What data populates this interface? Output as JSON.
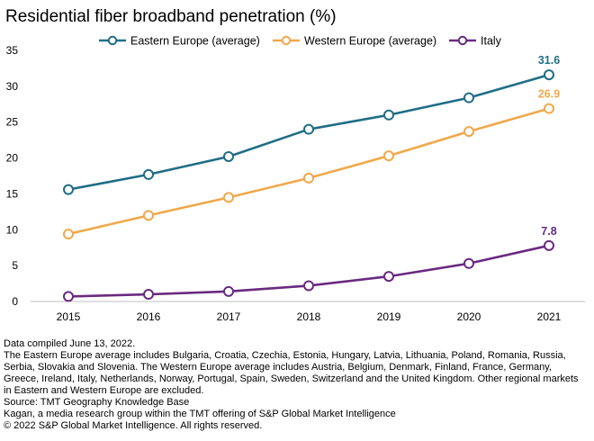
{
  "chart_data": {
    "type": "line",
    "title": "Residential fiber broadband penetration (%)",
    "xlabel": "",
    "ylabel": "",
    "categories": [
      "2015",
      "2016",
      "2017",
      "2018",
      "2019",
      "2020",
      "2021"
    ],
    "ylim": [
      0,
      35
    ],
    "yticks": [
      0,
      5,
      10,
      15,
      20,
      25,
      30,
      35
    ],
    "grid": false,
    "legend_position": "top",
    "series": [
      {
        "name": "Eastern Europe (average)",
        "color": "#1f6e86",
        "values": [
          15.6,
          17.7,
          20.2,
          24.0,
          26.0,
          28.4,
          31.6
        ],
        "end_label": "31.6"
      },
      {
        "name": "Western Europe (average)",
        "color": "#f0a84a",
        "values": [
          9.4,
          12.0,
          14.5,
          17.2,
          20.3,
          23.7,
          26.9
        ],
        "end_label": "26.9"
      },
      {
        "name": "Italy",
        "color": "#6a2a80",
        "values": [
          0.7,
          1.0,
          1.4,
          2.2,
          3.5,
          5.3,
          7.8
        ],
        "end_label": "7.8"
      }
    ]
  },
  "notes": [
    "Data compiled June 13, 2022.",
    "The Eastern Europe average includes Bulgaria, Croatia, Czechia, Estonia, Hungary, Latvia, Lithuania, Poland, Romania, Russia, Serbia, Slovakia and Slovenia. The Western Europe average includes Austria, Belgium, Denmark, Finland, France, Germany, Greece, Ireland, Italy, Netherlands, Norway, Portugal, Spain, Sweden, Switzerland and the United Kingdom. Other regional markets in Eastern and Western Europe are excluded.",
    "Source: TMT Geography Knowledge Base",
    "Kagan, a media research group within the TMT offering of S&P Global Market Intelligence",
    "© 2022 S&P Global Market Intelligence. All rights reserved."
  ]
}
